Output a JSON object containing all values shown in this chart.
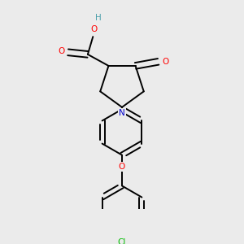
{
  "bg_color": "#ebebeb",
  "bond_color": "#000000",
  "atom_colors": {
    "O": "#ff0000",
    "N": "#0000cc",
    "Cl": "#00bb00",
    "H": "#4a9faa",
    "C": "#000000"
  },
  "figsize": [
    3.0,
    3.0
  ],
  "dpi": 100,
  "lw": 1.4,
  "fontsize": 7.5
}
